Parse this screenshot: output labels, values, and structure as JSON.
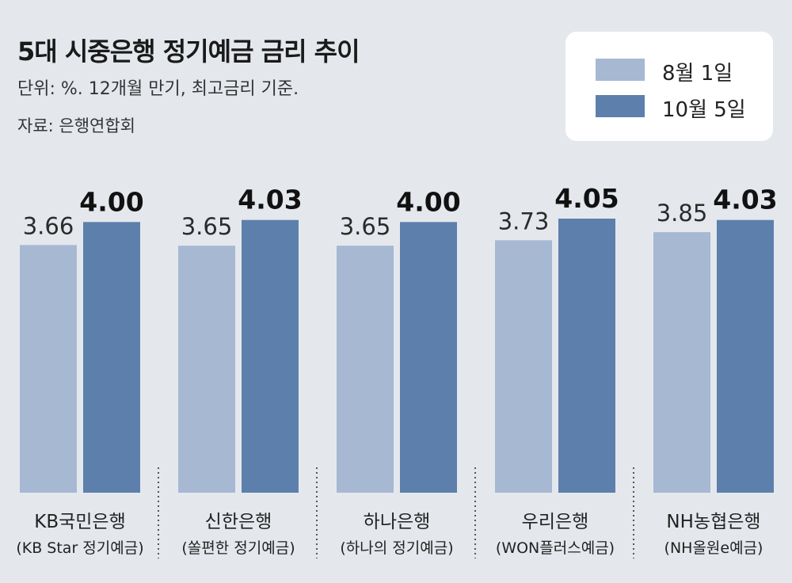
{
  "chart_data": {
    "type": "bar",
    "title": "5대 시중은행 정기예금 금리 추이",
    "unit_note": "단위: %. 12개월 만기, 최고금리 기준.",
    "source": "자료: 은행연합회",
    "categories": [
      "KB국민은행",
      "신한은행",
      "하나은행",
      "우리은행",
      "NH농협은행"
    ],
    "subcategories": [
      "(KB Star 정기예금)",
      "(쏠편한 정기예금)",
      "(하나의 정기예금)",
      "(WON플러스예금)",
      "(NH올원e예금)"
    ],
    "series": [
      {
        "name": "8월 1일",
        "color": "#a6b8d2",
        "values": [
          3.66,
          3.65,
          3.65,
          3.73,
          3.85
        ],
        "labels": [
          "3.66",
          "3.65",
          "3.65",
          "3.73",
          "3.85"
        ]
      },
      {
        "name": "10월 5일",
        "color": "#5d7fac",
        "values": [
          4.0,
          4.03,
          4.0,
          4.05,
          4.03
        ],
        "labels": [
          "4.00",
          "4.03",
          "4.00",
          "4.05",
          "4.03"
        ]
      }
    ],
    "legend_position": "top-right",
    "grid": false,
    "separators": "dotted"
  }
}
